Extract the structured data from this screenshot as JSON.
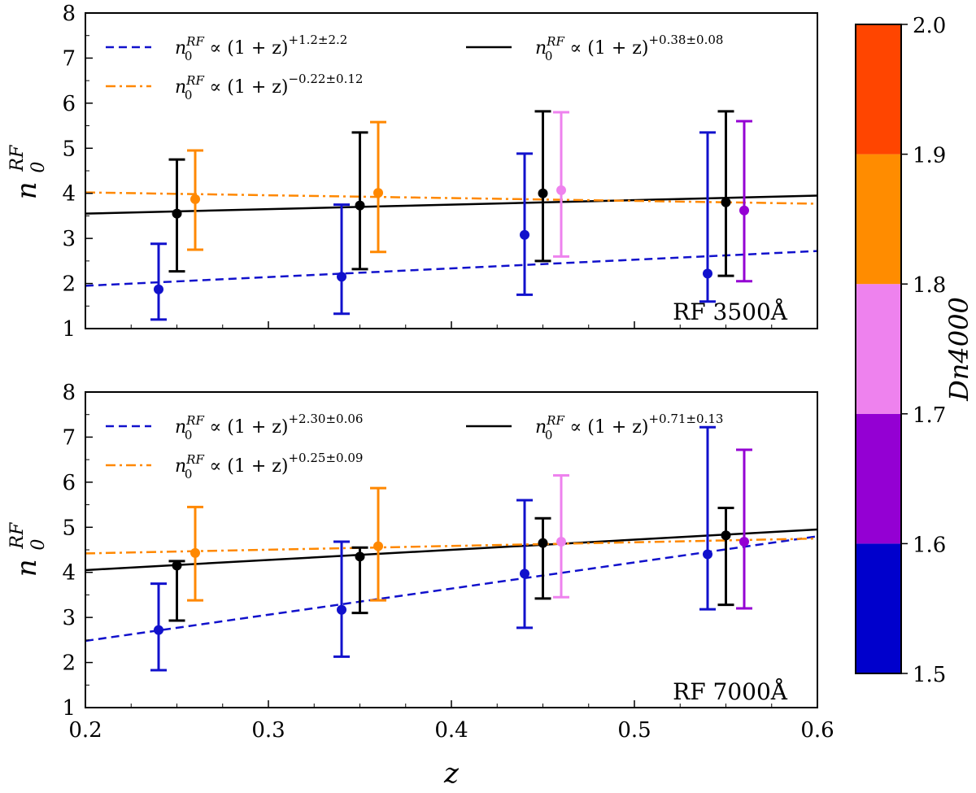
{
  "chart_data": [
    {
      "type": "scatter",
      "panel": "top",
      "annotation": "RF 3500Å",
      "xlabel": "z",
      "ylabel": "n0 RF",
      "xlim": [
        0.2,
        0.6
      ],
      "ylim": [
        1,
        8
      ],
      "xticks": [
        "0.2",
        "0.3",
        "0.4",
        "0.5",
        "0.6"
      ],
      "yticks": [
        "1",
        "2",
        "3",
        "4",
        "5",
        "6",
        "7",
        "8"
      ],
      "legend_position": "top",
      "fits": [
        {
          "name": "blue",
          "color": "#1111cc",
          "style": "dashed",
          "values": [
            1.95,
            2.72
          ],
          "label_prefix": "n",
          "label_sup": "RF",
          "label_sub": "0",
          "label_mid": " ∝ (1 + z)",
          "label_exp": "+1.2±2.2"
        },
        {
          "name": "black",
          "color": "#000000",
          "style": "solid",
          "values": [
            3.55,
            3.95
          ],
          "label_prefix": "n",
          "label_sup": "RF",
          "label_sub": "0",
          "label_mid": " ∝ (1 + z)",
          "label_exp": "+0.38±0.08"
        },
        {
          "name": "orange",
          "color": "#ff8800",
          "style": "dashdot",
          "values": [
            4.02,
            3.77
          ],
          "label_prefix": "n",
          "label_sup": "RF",
          "label_sub": "0",
          "label_mid": " ∝ (1 + z)",
          "label_exp": "−0.22±0.12"
        }
      ],
      "points": [
        {
          "x": 0.24,
          "y": 1.87,
          "low": 1.2,
          "high": 2.88,
          "color": "#1111cc"
        },
        {
          "x": 0.25,
          "y": 3.55,
          "low": 2.27,
          "high": 4.75,
          "color": "#000000"
        },
        {
          "x": 0.26,
          "y": 3.87,
          "low": 2.75,
          "high": 4.95,
          "color": "#ff8800"
        },
        {
          "x": 0.34,
          "y": 2.15,
          "low": 1.33,
          "high": 3.75,
          "color": "#1111cc"
        },
        {
          "x": 0.35,
          "y": 3.73,
          "low": 2.32,
          "high": 5.35,
          "color": "#000000"
        },
        {
          "x": 0.36,
          "y": 4.01,
          "low": 2.7,
          "high": 5.58,
          "color": "#ff8800"
        },
        {
          "x": 0.44,
          "y": 3.08,
          "low": 1.75,
          "high": 4.88,
          "color": "#1111cc"
        },
        {
          "x": 0.45,
          "y": 4.0,
          "low": 2.5,
          "high": 5.82,
          "color": "#000000"
        },
        {
          "x": 0.46,
          "y": 4.07,
          "low": 2.6,
          "high": 5.8,
          "color": "#ee82ee"
        },
        {
          "x": 0.54,
          "y": 2.22,
          "low": 1.6,
          "high": 5.35,
          "color": "#1111cc"
        },
        {
          "x": 0.55,
          "y": 3.8,
          "low": 2.17,
          "high": 5.82,
          "color": "#000000"
        },
        {
          "x": 0.56,
          "y": 3.62,
          "low": 2.05,
          "high": 5.6,
          "color": "#9400d3"
        }
      ]
    },
    {
      "type": "scatter",
      "panel": "bottom",
      "annotation": "RF 7000Å",
      "xlabel": "z",
      "ylabel": "n0 RF",
      "xlim": [
        0.2,
        0.6
      ],
      "ylim": [
        1,
        8
      ],
      "xticks": [
        "0.2",
        "0.3",
        "0.4",
        "0.5",
        "0.6"
      ],
      "yticks": [
        "1",
        "2",
        "3",
        "4",
        "5",
        "6",
        "7",
        "8"
      ],
      "legend_position": "top",
      "fits": [
        {
          "name": "blue",
          "color": "#1111cc",
          "style": "dashed",
          "values": [
            2.48,
            4.8
          ],
          "label_prefix": "n",
          "label_sup": "RF",
          "label_sub": "0",
          "label_mid": " ∝ (1 + z)",
          "label_exp": "+2.30±0.06"
        },
        {
          "name": "black",
          "color": "#000000",
          "style": "solid",
          "values": [
            4.05,
            4.95
          ],
          "label_prefix": "n",
          "label_sup": "RF",
          "label_sub": "0",
          "label_mid": " ∝ (1 + z)",
          "label_exp": "+0.71±0.13"
        },
        {
          "name": "orange",
          "color": "#ff8800",
          "style": "dashdot",
          "values": [
            4.42,
            4.75
          ],
          "label_prefix": "n",
          "label_sup": "RF",
          "label_sub": "0",
          "label_mid": " ∝ (1 + z)",
          "label_exp": "+0.25±0.09"
        }
      ],
      "points": [
        {
          "x": 0.24,
          "y": 2.72,
          "low": 1.83,
          "high": 3.75,
          "color": "#1111cc"
        },
        {
          "x": 0.25,
          "y": 4.15,
          "low": 2.93,
          "high": 4.25,
          "color": "#000000"
        },
        {
          "x": 0.26,
          "y": 4.43,
          "low": 3.38,
          "high": 5.45,
          "color": "#ff8800"
        },
        {
          "x": 0.34,
          "y": 3.17,
          "low": 2.13,
          "high": 4.68,
          "color": "#1111cc"
        },
        {
          "x": 0.35,
          "y": 4.35,
          "low": 3.1,
          "high": 4.55,
          "color": "#000000"
        },
        {
          "x": 0.36,
          "y": 4.58,
          "low": 3.38,
          "high": 5.87,
          "color": "#ff8800"
        },
        {
          "x": 0.44,
          "y": 3.97,
          "low": 2.77,
          "high": 5.6,
          "color": "#1111cc"
        },
        {
          "x": 0.45,
          "y": 4.65,
          "low": 3.42,
          "high": 5.2,
          "color": "#000000"
        },
        {
          "x": 0.46,
          "y": 4.68,
          "low": 3.45,
          "high": 6.15,
          "color": "#ee82ee"
        },
        {
          "x": 0.54,
          "y": 4.4,
          "low": 3.18,
          "high": 7.22,
          "color": "#1111cc"
        },
        {
          "x": 0.55,
          "y": 4.82,
          "low": 3.28,
          "high": 5.43,
          "color": "#000000"
        },
        {
          "x": 0.56,
          "y": 4.68,
          "low": 3.2,
          "high": 6.72,
          "color": "#9400d3"
        }
      ]
    }
  ],
  "colorbar": {
    "label": "Dn4000",
    "ticks": [
      "1.5",
      "1.6",
      "1.7",
      "1.8",
      "1.9",
      "2.0"
    ],
    "range": [
      1.5,
      2.0
    ],
    "segments": [
      {
        "from": 1.5,
        "to": 1.6,
        "color": "#0000cc"
      },
      {
        "from": 1.6,
        "to": 1.7,
        "color": "#9400d3"
      },
      {
        "from": 1.7,
        "to": 1.8,
        "color": "#ee82ee"
      },
      {
        "from": 1.8,
        "to": 1.9,
        "color": "#ff8c00"
      },
      {
        "from": 1.9,
        "to": 2.0,
        "color": "#ff4500"
      }
    ]
  }
}
